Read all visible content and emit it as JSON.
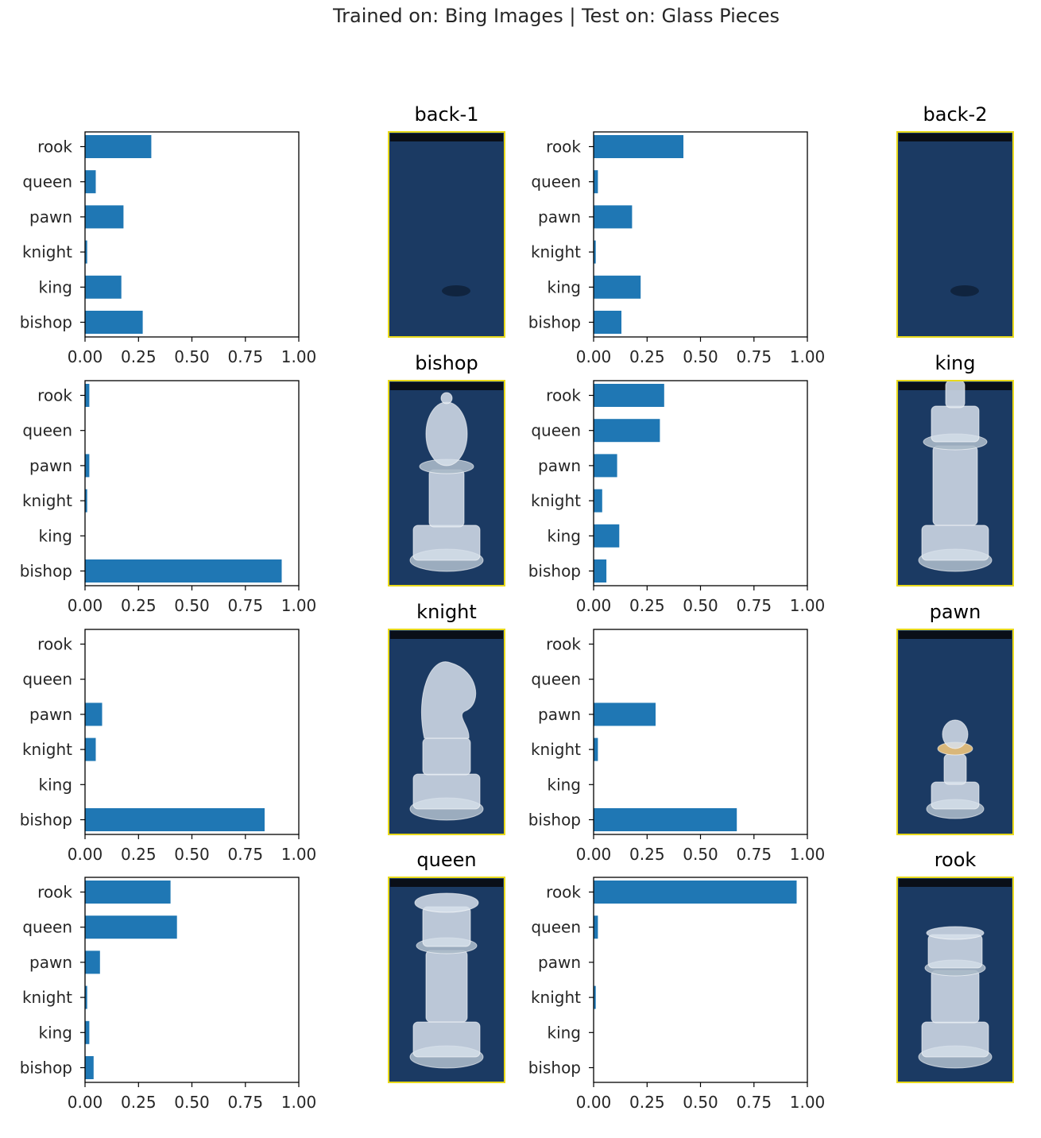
{
  "figure": {
    "suptitle": "Trained on: Bing Images |  Test on: Glass Pieces"
  },
  "colors": {
    "bar": "#1f77b4",
    "axis": "#000000",
    "text": "#262626",
    "board_blue": "#1b3a63",
    "image_border": "#e8d91a"
  },
  "chart_data": [
    {
      "type": "bar",
      "orientation": "horizontal",
      "image_title": "back-1",
      "categories": [
        "bishop",
        "king",
        "knight",
        "pawn",
        "queen",
        "rook"
      ],
      "values": [
        0.27,
        0.17,
        0.01,
        0.18,
        0.05,
        0.31
      ],
      "xlim": [
        0,
        1
      ],
      "xticks": [
        "0.00",
        "0.25",
        "0.50",
        "0.75",
        "1.00"
      ]
    },
    {
      "type": "bar",
      "orientation": "horizontal",
      "image_title": "back-2",
      "categories": [
        "bishop",
        "king",
        "knight",
        "pawn",
        "queen",
        "rook"
      ],
      "values": [
        0.13,
        0.22,
        0.01,
        0.18,
        0.02,
        0.42
      ],
      "xlim": [
        0,
        1
      ],
      "xticks": [
        "0.00",
        "0.25",
        "0.50",
        "0.75",
        "1.00"
      ]
    },
    {
      "type": "bar",
      "orientation": "horizontal",
      "image_title": "bishop",
      "categories": [
        "bishop",
        "king",
        "knight",
        "pawn",
        "queen",
        "rook"
      ],
      "values": [
        0.92,
        0.0,
        0.01,
        0.02,
        0.0,
        0.02
      ],
      "xlim": [
        0,
        1
      ],
      "xticks": [
        "0.00",
        "0.25",
        "0.50",
        "0.75",
        "1.00"
      ]
    },
    {
      "type": "bar",
      "orientation": "horizontal",
      "image_title": "king",
      "categories": [
        "bishop",
        "king",
        "knight",
        "pawn",
        "queen",
        "rook"
      ],
      "values": [
        0.06,
        0.12,
        0.04,
        0.11,
        0.31,
        0.33
      ],
      "xlim": [
        0,
        1
      ],
      "xticks": [
        "0.00",
        "0.25",
        "0.50",
        "0.75",
        "1.00"
      ]
    },
    {
      "type": "bar",
      "orientation": "horizontal",
      "image_title": "knight",
      "categories": [
        "bishop",
        "king",
        "knight",
        "pawn",
        "queen",
        "rook"
      ],
      "values": [
        0.84,
        0.0,
        0.05,
        0.08,
        0.0,
        0.0
      ],
      "xlim": [
        0,
        1
      ],
      "xticks": [
        "0.00",
        "0.25",
        "0.50",
        "0.75",
        "1.00"
      ]
    },
    {
      "type": "bar",
      "orientation": "horizontal",
      "image_title": "pawn",
      "categories": [
        "bishop",
        "king",
        "knight",
        "pawn",
        "queen",
        "rook"
      ],
      "values": [
        0.67,
        0.0,
        0.02,
        0.29,
        0.0,
        0.0
      ],
      "xlim": [
        0,
        1
      ],
      "xticks": [
        "0.00",
        "0.25",
        "0.50",
        "0.75",
        "1.00"
      ]
    },
    {
      "type": "bar",
      "orientation": "horizontal",
      "image_title": "queen",
      "categories": [
        "bishop",
        "king",
        "knight",
        "pawn",
        "queen",
        "rook"
      ],
      "values": [
        0.04,
        0.02,
        0.01,
        0.07,
        0.43,
        0.4
      ],
      "xlim": [
        0,
        1
      ],
      "xticks": [
        "0.00",
        "0.25",
        "0.50",
        "0.75",
        "1.00"
      ]
    },
    {
      "type": "bar",
      "orientation": "horizontal",
      "image_title": "rook",
      "categories": [
        "bishop",
        "king",
        "knight",
        "pawn",
        "queen",
        "rook"
      ],
      "values": [
        0.0,
        0.0,
        0.01,
        0.0,
        0.02,
        0.95
      ],
      "xlim": [
        0,
        1
      ],
      "xticks": [
        "0.00",
        "0.25",
        "0.50",
        "0.75",
        "1.00"
      ]
    }
  ],
  "images": [
    {
      "title": "back-1",
      "piece": "none"
    },
    {
      "title": "back-2",
      "piece": "none"
    },
    {
      "title": "bishop",
      "piece": "bishop"
    },
    {
      "title": "king",
      "piece": "king"
    },
    {
      "title": "knight",
      "piece": "knight"
    },
    {
      "title": "pawn",
      "piece": "pawn"
    },
    {
      "title": "queen",
      "piece": "queen"
    },
    {
      "title": "rook",
      "piece": "rook"
    }
  ]
}
